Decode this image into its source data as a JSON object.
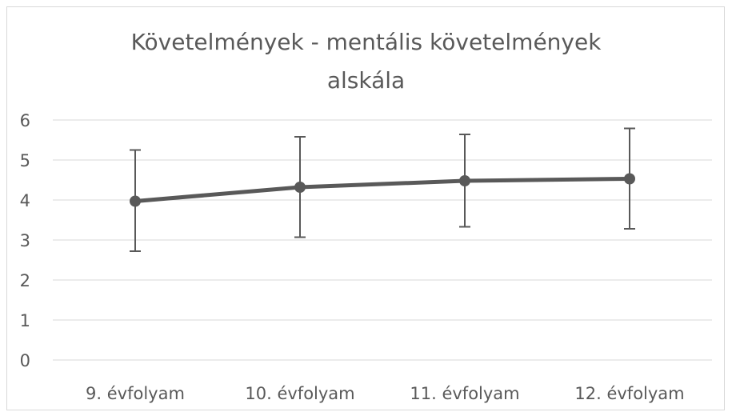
{
  "chart_data": {
    "type": "line",
    "title_lines": [
      "Követelmények - mentális követelmények",
      "alskála"
    ],
    "xlabel": "",
    "ylabel": "",
    "categories": [
      "9. évfolyam",
      "10. évfolyam",
      "11. évfolyam",
      "12. évfolyam"
    ],
    "series": [
      {
        "values": [
          3.97,
          4.32,
          4.48,
          4.53
        ],
        "error_low": [
          2.72,
          3.07,
          3.33,
          3.28
        ],
        "error_high": [
          5.25,
          5.58,
          5.64,
          5.79
        ]
      }
    ],
    "ylim": [
      0,
      6
    ],
    "yticks": [
      "0",
      "1",
      "2",
      "3",
      "4",
      "5",
      "6"
    ],
    "grid": true,
    "legend": "none",
    "colors": {
      "line": "#595959",
      "grid": "#d9d9d9",
      "text": "#595959"
    }
  }
}
